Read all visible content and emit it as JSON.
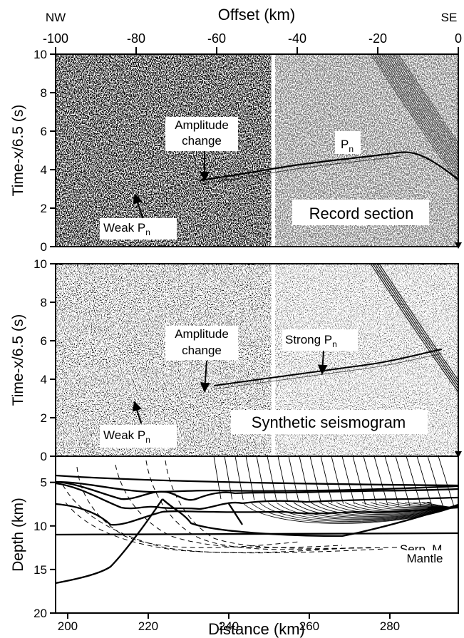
{
  "figure": {
    "top_axis": {
      "title": "Offset (km)",
      "left_label": "NW",
      "right_label": "SE",
      "ticks": [
        -100,
        -80,
        -60,
        -40,
        -20,
        0
      ],
      "range": [
        -100,
        0
      ]
    },
    "panels": {
      "record": {
        "ylabel": "Time-x/6.5 (s)",
        "ylim": [
          0,
          10
        ],
        "yticks": [
          0,
          2,
          4,
          6,
          8,
          10
        ],
        "panel_label": "Record section",
        "annotations": {
          "amplitude_change": [
            "Amplitude",
            "change"
          ],
          "pn_main": "P",
          "pn_sub": "n",
          "weak_main": "Weak P",
          "weak_sub": "n"
        }
      },
      "synthetic": {
        "ylabel": "Time-x/6.5 (s)",
        "ylim": [
          0,
          10
        ],
        "yticks": [
          0,
          2,
          4,
          6,
          8,
          10
        ],
        "panel_label": "Synthetic seismogram",
        "annotations": {
          "amplitude_change": [
            "Amplitude",
            "change"
          ],
          "strong_main": "Strong P",
          "strong_sub": "n",
          "weak_main": "Weak P",
          "weak_sub": "n"
        }
      },
      "model": {
        "ylabel": "Depth (km)",
        "xlabel": "Distance (km)",
        "xlim": [
          197,
          297
        ],
        "xticks": [
          200,
          220,
          240,
          260,
          280
        ],
        "ylim": [
          20,
          2
        ],
        "yticks": [
          5,
          10,
          15,
          20
        ],
        "labels": {
          "serp_mantle": "Serp. M.",
          "mantle": "Mantle"
        }
      }
    },
    "colors": {
      "ink": "#000000",
      "background": "#ffffff"
    }
  }
}
